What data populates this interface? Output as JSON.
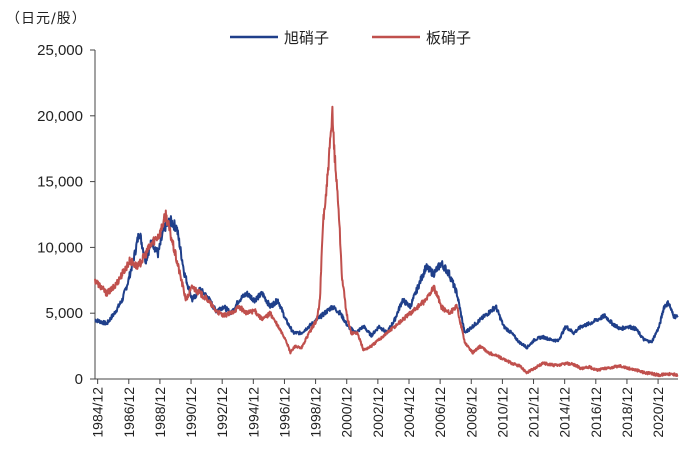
{
  "chart_data": {
    "type": "line",
    "title": "",
    "unit_label": "（日元/股）",
    "xlabel": "",
    "ylabel": "日元/股",
    "ylim": [
      0,
      25000
    ],
    "xlim": [
      1984.75,
      2022.2
    ],
    "y_ticks": [
      "0",
      "5,000",
      "10,000",
      "15,000",
      "20,000",
      "25,000"
    ],
    "y_tick_values": [
      0,
      5000,
      10000,
      15000,
      20000,
      25000
    ],
    "x_ticks": [
      "1984/12",
      "1986/12",
      "1988/12",
      "1990/12",
      "1992/12",
      "1994/12",
      "1996/12",
      "1998/12",
      "2000/12",
      "2002/12",
      "2004/12",
      "2006/12",
      "2008/12",
      "2010/12",
      "2012/12",
      "2014/12",
      "2016/12",
      "2018/12",
      "2020/12"
    ],
    "x_tick_values": [
      1984.92,
      1986.92,
      1988.92,
      1990.92,
      1992.92,
      1994.92,
      1996.92,
      1998.92,
      2000.92,
      2002.92,
      2004.92,
      2006.92,
      2008.92,
      2010.92,
      2012.92,
      2014.92,
      2016.92,
      2018.92,
      2020.92
    ],
    "legend_position": "top-center",
    "series": [
      {
        "name": "旭硝子",
        "color": "#1f3f8a",
        "x": [
          1984.75,
          1985.5,
          1986.0,
          1986.5,
          1986.9,
          1987.3,
          1987.6,
          1988.0,
          1988.4,
          1988.8,
          1989.2,
          1989.6,
          1990.0,
          1990.5,
          1991.0,
          1991.5,
          1992.0,
          1992.5,
          1993.0,
          1993.5,
          1994.0,
          1994.5,
          1995.0,
          1995.5,
          1996.0,
          1996.5,
          1997.0,
          1997.5,
          1998.0,
          1998.5,
          1999.0,
          1999.5,
          2000.0,
          2000.5,
          2001.0,
          2001.5,
          2002.0,
          2002.5,
          2003.0,
          2003.5,
          2004.0,
          2004.5,
          2005.0,
          2005.5,
          2006.0,
          2006.5,
          2007.0,
          2007.5,
          2008.0,
          2008.5,
          2009.0,
          2009.5,
          2010.0,
          2010.5,
          2011.0,
          2011.5,
          2012.0,
          2012.5,
          2013.0,
          2013.5,
          2014.0,
          2014.5,
          2015.0,
          2015.5,
          2016.0,
          2016.5,
          2017.0,
          2017.5,
          2018.0,
          2018.5,
          2019.0,
          2019.5,
          2020.0,
          2020.5,
          2021.0,
          2021.3,
          2021.6,
          2021.9,
          2022.2
        ],
        "values": [
          4500,
          4200,
          5000,
          6000,
          7500,
          9500,
          11200,
          9000,
          10500,
          9500,
          11500,
          12000,
          11500,
          8000,
          6000,
          6800,
          6200,
          5200,
          5500,
          5000,
          6000,
          6500,
          6000,
          6500,
          5500,
          6000,
          4500,
          3500,
          3500,
          4000,
          4500,
          5000,
          5500,
          5000,
          4000,
          3500,
          4000,
          3300,
          4000,
          3500,
          4500,
          6000,
          5500,
          7000,
          8500,
          8000,
          8800,
          8000,
          6500,
          3500,
          4000,
          4500,
          5000,
          5500,
          4000,
          3500,
          2800,
          2400,
          3000,
          3200,
          3000,
          2900,
          4000,
          3500,
          4000,
          4200,
          4500,
          4800,
          4200,
          3800,
          4000,
          3800,
          3000,
          2800,
          4000,
          5500,
          5800,
          4800,
          4700
        ]
      },
      {
        "name": "板硝子",
        "color": "#c0504d",
        "x": [
          1984.75,
          1985.5,
          1986.0,
          1986.5,
          1987.0,
          1987.5,
          1988.0,
          1988.5,
          1988.9,
          1989.3,
          1989.6,
          1990.0,
          1990.3,
          1990.6,
          1991.0,
          1991.5,
          1992.0,
          1992.5,
          1993.0,
          1993.5,
          1994.0,
          1994.5,
          1995.0,
          1995.5,
          1996.0,
          1996.5,
          1997.0,
          1997.3,
          1997.6,
          1998.0,
          1998.5,
          1999.0,
          1999.2,
          1999.4,
          1999.6,
          1999.8,
          2000.0,
          2000.2,
          2000.4,
          2000.6,
          2000.9,
          2001.2,
          2001.6,
          2002.0,
          2002.5,
          2003.0,
          2003.5,
          2004.0,
          2004.5,
          2005.0,
          2005.5,
          2006.0,
          2006.5,
          2007.0,
          2007.5,
          2008.0,
          2008.5,
          2009.0,
          2009.5,
          2010.0,
          2010.5,
          2011.0,
          2011.5,
          2012.0,
          2012.5,
          2013.0,
          2013.5,
          2014.0,
          2014.5,
          2015.0,
          2015.5,
          2016.0,
          2016.5,
          2017.0,
          2017.5,
          2018.0,
          2018.5,
          2019.0,
          2019.5,
          2020.0,
          2020.5,
          2021.0,
          2021.5,
          2022.2
        ],
        "values": [
          7500,
          6500,
          7000,
          8000,
          9000,
          8500,
          9500,
          10500,
          11000,
          12500,
          11000,
          9000,
          7500,
          6000,
          7000,
          6500,
          6000,
          5200,
          4800,
          5000,
          5500,
          5000,
          5200,
          4500,
          5000,
          4000,
          3000,
          2000,
          2500,
          2300,
          3500,
          4500,
          6000,
          12000,
          14000,
          17000,
          20000,
          16000,
          13000,
          8000,
          5000,
          3500,
          3500,
          2200,
          2500,
          3000,
          3500,
          4000,
          4500,
          5000,
          5500,
          6000,
          7000,
          5500,
          5000,
          5500,
          2800,
          2000,
          2500,
          2000,
          1800,
          1500,
          1200,
          1000,
          500,
          800,
          1200,
          1100,
          1000,
          1200,
          1100,
          800,
          900,
          700,
          800,
          900,
          1000,
          800,
          700,
          500,
          400,
          300,
          400,
          300
        ]
      }
    ]
  }
}
